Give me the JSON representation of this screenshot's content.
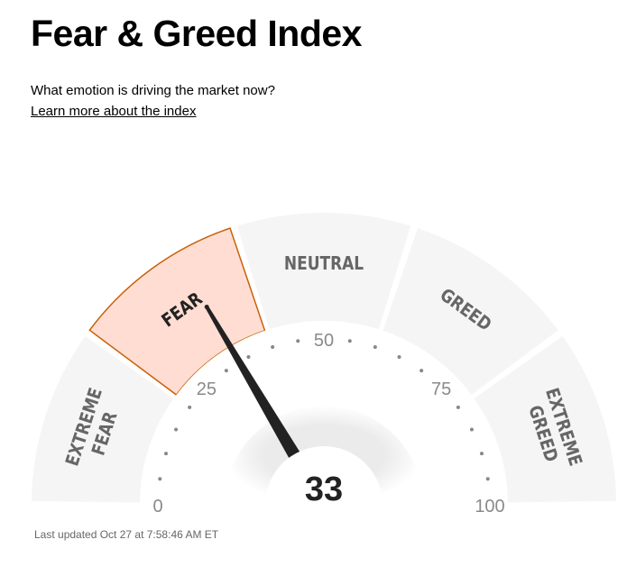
{
  "header": {
    "title": "Fear & Greed Index",
    "subtitle": "What emotion is driving the market now?",
    "link": "Learn more about the index"
  },
  "gauge": {
    "value": 33,
    "value_label": "33",
    "active_segment": "FEAR",
    "segments": [
      {
        "lines": [
          "EXTREME",
          "FEAR"
        ],
        "from": 0,
        "to": 25
      },
      {
        "lines": [
          "FEAR"
        ],
        "from": 25,
        "to": 45
      },
      {
        "lines": [
          "NEUTRAL"
        ],
        "from": 45,
        "to": 55
      },
      {
        "lines": [
          "GREED"
        ],
        "from": 55,
        "to": 75
      },
      {
        "lines": [
          "EXTREME",
          "GREED"
        ],
        "from": 75,
        "to": 100
      }
    ],
    "ticks": [
      "0",
      "25",
      "50",
      "75",
      "100"
    ],
    "colors": {
      "segment": "#f5f5f5",
      "active_fill": "#ffddd2",
      "active_stroke": "#c8620a",
      "needle": "#222222",
      "label": "#666666",
      "active_label": "#222222"
    }
  },
  "footer": {
    "updated": "Last updated Oct 27 at 7:58:46 AM ET"
  }
}
